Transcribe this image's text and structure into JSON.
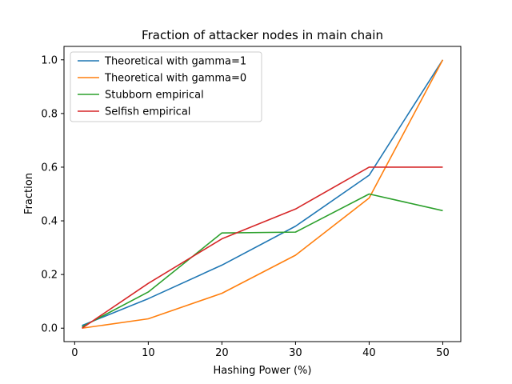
{
  "chart_data": {
    "type": "line",
    "title": "Fraction of attacker nodes in main chain",
    "xlabel": "Hashing Power (%)",
    "ylabel": "Fraction",
    "xlim": [
      -1.45,
      52.45
    ],
    "ylim": [
      -0.05,
      1.05
    ],
    "xticks": [
      0,
      10,
      20,
      30,
      40,
      50
    ],
    "xtick_labels": [
      "0",
      "10",
      "20",
      "30",
      "40",
      "50"
    ],
    "yticks": [
      0.0,
      0.2,
      0.4,
      0.6,
      0.8,
      1.0
    ],
    "ytick_labels": [
      "0.0",
      "0.2",
      "0.4",
      "0.6",
      "0.8",
      "1.0"
    ],
    "grid": false,
    "legend_position": "top-left",
    "series": [
      {
        "name": "Theoretical with gamma=1",
        "color": "#1f77b4",
        "x": [
          1,
          10,
          20,
          30,
          40,
          50
        ],
        "y": [
          0.01,
          0.11,
          0.235,
          0.38,
          0.57,
          1.0
        ]
      },
      {
        "name": "Theoretical with gamma=0",
        "color": "#ff7f0e",
        "x": [
          1,
          10,
          20,
          30,
          40,
          50
        ],
        "y": [
          0.0,
          0.035,
          0.13,
          0.272,
          0.485,
          1.0
        ]
      },
      {
        "name": "Stubborn empirical",
        "color": "#2ca02c",
        "x": [
          1,
          10,
          20,
          30,
          40,
          50
        ],
        "y": [
          0.005,
          0.135,
          0.355,
          0.358,
          0.5,
          0.438
        ]
      },
      {
        "name": "Selfish empirical",
        "color": "#d62728",
        "x": [
          1,
          10,
          20,
          30,
          40,
          50
        ],
        "y": [
          0.0,
          0.167,
          0.333,
          0.444,
          0.6,
          0.6
        ]
      }
    ]
  }
}
